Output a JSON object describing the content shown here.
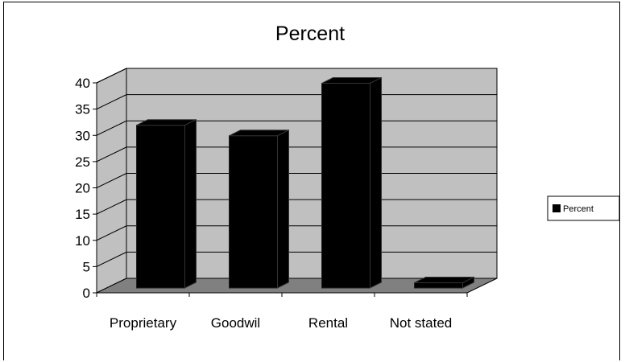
{
  "chart_data": {
    "type": "bar",
    "title": "Percent",
    "categories": [
      "Proprietary",
      "Goodwil",
      "Rental",
      "Not stated"
    ],
    "series": [
      {
        "name": "Percent",
        "values": [
          31,
          29,
          39,
          1
        ]
      }
    ],
    "ylim": [
      0,
      40
    ],
    "yticks": [
      0,
      5,
      10,
      15,
      20,
      25,
      30,
      35,
      40
    ],
    "xlabel": "",
    "ylabel": "",
    "grid": true,
    "legend": "right",
    "style": "3d",
    "colors": {
      "bar": "#000000",
      "wall": "#c0c0c0",
      "floor": "#808080",
      "gridline": "#000000"
    }
  }
}
